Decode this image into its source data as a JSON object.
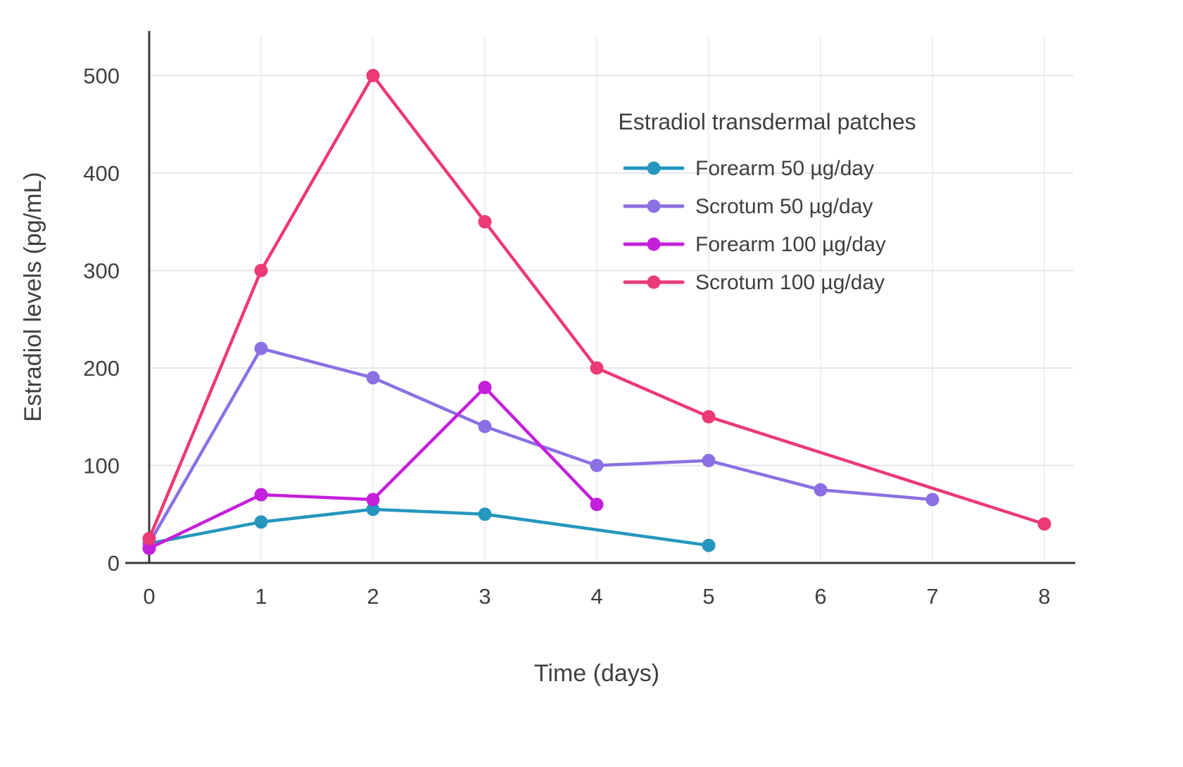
{
  "chart_data": {
    "type": "line",
    "title": "",
    "legend_title": "Estradiol transdermal patches",
    "xlabel": "Time (days)",
    "ylabel": "Estradiol levels (pg/mL)",
    "xlim": [
      0,
      8
    ],
    "ylim": [
      0,
      540
    ],
    "xticks": [
      0,
      1,
      2,
      3,
      4,
      5,
      6,
      7,
      8
    ],
    "yticks": [
      0,
      100,
      200,
      300,
      400,
      500
    ],
    "grid": true,
    "legend_position": "top-right-inside",
    "colors": {
      "background": "#ffffff",
      "axis": "#3a3a3a",
      "text": "#3f3f3f",
      "grid_horizontal": "#e5e5e5",
      "grid_vertical": "#f0f0f0"
    },
    "series": [
      {
        "name": "Forearm 50 µg/day",
        "color": "#2596be",
        "points": [
          [
            0,
            20
          ],
          [
            1,
            42
          ],
          [
            2,
            55
          ],
          [
            3,
            50
          ],
          [
            5,
            18
          ]
        ]
      },
      {
        "name": "Scrotum 50 µg/day",
        "color": "#8a70e2",
        "points": [
          [
            0,
            20
          ],
          [
            1,
            220
          ],
          [
            2,
            190
          ],
          [
            3,
            140
          ],
          [
            4,
            100
          ],
          [
            5,
            105
          ],
          [
            6,
            75
          ],
          [
            7,
            65
          ]
        ]
      },
      {
        "name": "Forearm 100 µg/day",
        "color": "#c41fdb",
        "points": [
          [
            0,
            15
          ],
          [
            1,
            70
          ],
          [
            2,
            65
          ],
          [
            3,
            180
          ],
          [
            4,
            60
          ]
        ]
      },
      {
        "name": "Scrotum 100 µg/day",
        "color": "#ec3a74",
        "points": [
          [
            0,
            25
          ],
          [
            1,
            300
          ],
          [
            2,
            500
          ],
          [
            3,
            350
          ],
          [
            4,
            200
          ],
          [
            5,
            150
          ],
          [
            8,
            40
          ]
        ]
      }
    ]
  }
}
